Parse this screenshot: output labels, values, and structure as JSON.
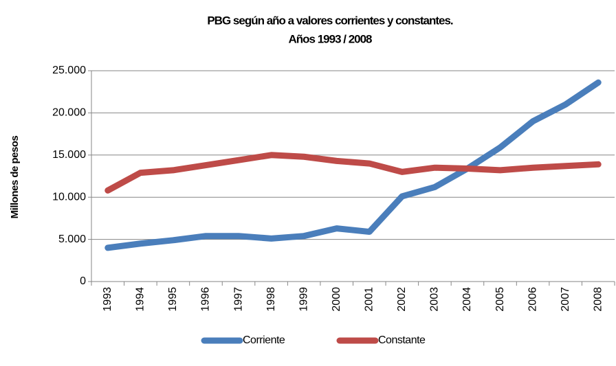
{
  "chart_data": {
    "type": "line",
    "title": "PBG según año a valores corrientes y constantes.",
    "subtitle": "Años 1993 / 2008",
    "y_label": "Millones de pesos",
    "categories": [
      "1993",
      "1994",
      "1995",
      "1996",
      "1997",
      "1998",
      "1999",
      "2000",
      "2001",
      "2002",
      "2003",
      "2004",
      "2005",
      "2006",
      "2007",
      "2008"
    ],
    "series": [
      {
        "name": "Corriente",
        "color": "#4a7ebb",
        "values": [
          4000,
          4500,
          4900,
          5400,
          5400,
          5100,
          5400,
          6300,
          5900,
          10100,
          11200,
          13400,
          15900,
          19000,
          21000,
          23600
        ]
      },
      {
        "name": "Constante",
        "color": "#be4b48",
        "values": [
          10800,
          12900,
          13200,
          13800,
          14400,
          15000,
          14800,
          14300,
          14000,
          13000,
          13500,
          13400,
          13200,
          13500,
          13700,
          13900
        ]
      }
    ],
    "ylim": [
      0,
      25000
    ],
    "yticks": [
      0,
      {
        "value": 5000,
        "label": "5.000"
      },
      {
        "value": 10000,
        "label": "10.000"
      },
      {
        "value": 15000,
        "label": "15.000"
      },
      {
        "value": 20000,
        "label": "20.000"
      },
      {
        "value": 25000,
        "label": "25.000"
      }
    ],
    "grid": true,
    "legend": "bottom"
  }
}
